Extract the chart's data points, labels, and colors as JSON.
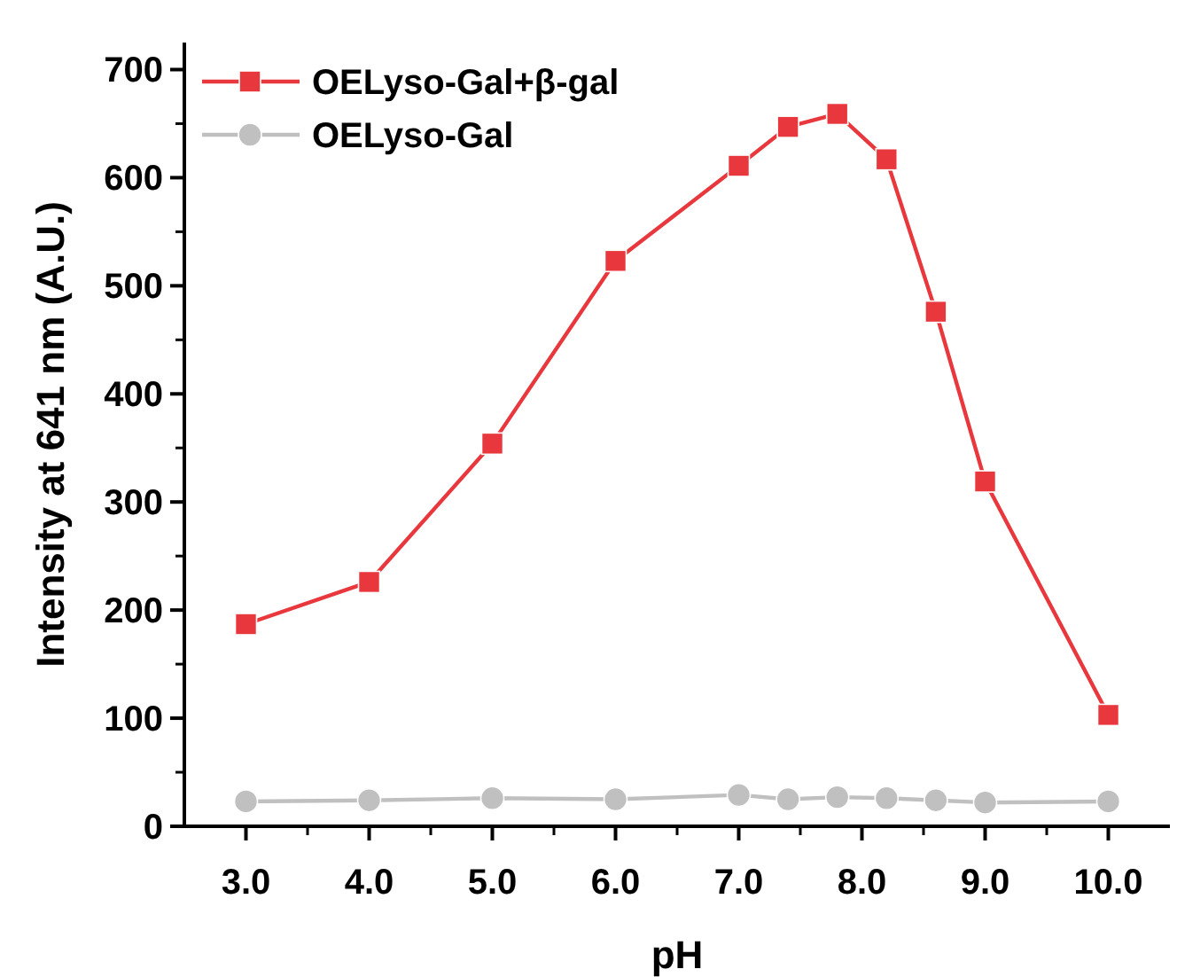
{
  "chart_data": {
    "type": "line",
    "xlabel": "pH",
    "ylabel": "Intensity at 641 nm (A.U.)",
    "x": [
      3,
      4,
      5,
      6,
      7,
      7.4,
      7.8,
      8.2,
      8.6,
      9,
      10
    ],
    "series": [
      {
        "name": "OELyso-Gal+β-gal",
        "color": "#e8383d",
        "marker": "square",
        "values": [
          187,
          226,
          354,
          523,
          611,
          647,
          659,
          617,
          476,
          319,
          103
        ]
      },
      {
        "name": "OELyso-Gal",
        "color": "#c0c0c0",
        "marker": "circle",
        "values": [
          23,
          24,
          26,
          25,
          29,
          25,
          27,
          26,
          24,
          22,
          23
        ]
      }
    ],
    "xlim": [
      2.5,
      10.5
    ],
    "xticks": [
      {
        "value": 3,
        "label": "3.0"
      },
      {
        "value": 4,
        "label": "4.0"
      },
      {
        "value": 5,
        "label": "5.0"
      },
      {
        "value": 6,
        "label": "6.0"
      },
      {
        "value": 7,
        "label": "7.0"
      },
      {
        "value": 8,
        "label": "8.0"
      },
      {
        "value": 9,
        "label": "9.0"
      },
      {
        "value": 10,
        "label": "10.0"
      }
    ],
    "ylim": [
      0,
      725
    ],
    "yticks": [
      0,
      100,
      200,
      300,
      400,
      500,
      600,
      700
    ],
    "grid": false,
    "legend": "top left",
    "line_style": "solid"
  }
}
